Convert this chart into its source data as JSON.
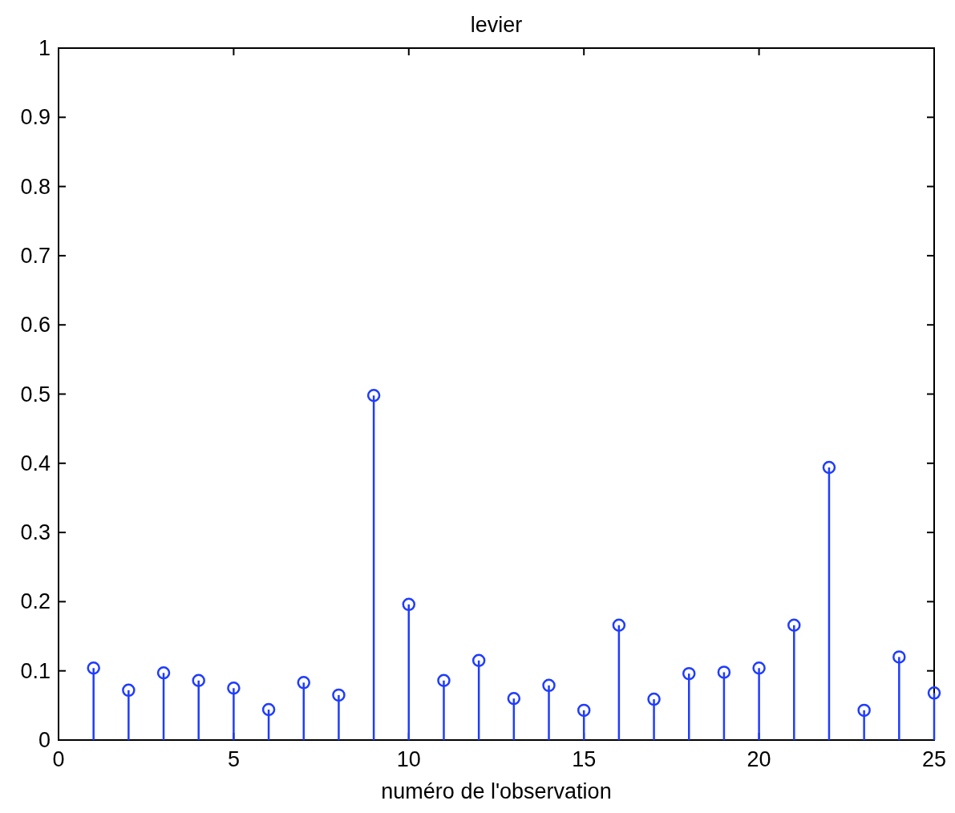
{
  "chart_data": {
    "type": "lollipop",
    "title": "levier",
    "xlabel": "numéro de l'observation",
    "x": [
      1,
      2,
      3,
      4,
      5,
      6,
      7,
      8,
      9,
      10,
      11,
      12,
      13,
      14,
      15,
      16,
      17,
      18,
      19,
      20,
      21,
      22,
      23,
      24,
      25
    ],
    "series": [
      {
        "color": "#1f3cff",
        "values": [
          0.104,
          0.072,
          0.097,
          0.086,
          0.075,
          0.044,
          0.083,
          0.065,
          0.498,
          0.196,
          0.086,
          0.115,
          0.06,
          0.079,
          0.043,
          0.166,
          0.059,
          0.096,
          0.098,
          0.104,
          0.166,
          0.394,
          0.043,
          0.12,
          0.068
        ]
      }
    ],
    "xlim": [
      0,
      25
    ],
    "xticks": [
      0,
      5,
      10,
      15,
      20,
      25
    ],
    "ylim": [
      0,
      1
    ],
    "yticks": [
      0,
      0.1,
      0.2,
      0.3,
      0.4,
      0.5,
      0.6,
      0.7,
      0.8,
      0.9,
      1
    ],
    "marker": "circle"
  }
}
